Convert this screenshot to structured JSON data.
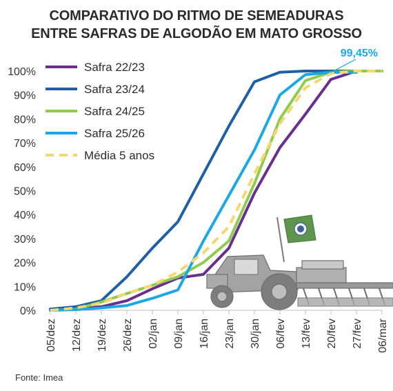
{
  "title_line1": "COMPARATIVO DO RITMO DE SEMEADURAS",
  "title_line2": "ENTRE SAFRAS DE ALGODÃO EM MATO GROSSO",
  "source": "Fonte: Imea",
  "chart_data": {
    "type": "line",
    "categories": [
      "05/dez",
      "12/dez",
      "19/dez",
      "26/dez",
      "02/jan",
      "09/jan",
      "16/jan",
      "23/jan",
      "30/jan",
      "06/fev",
      "13/fev",
      "20/fev",
      "27/fev",
      "06/mar"
    ],
    "ylim": [
      0,
      100
    ],
    "yticks": [
      "0%",
      "10%",
      "20%",
      "30%",
      "40%",
      "50%",
      "60%",
      "70%",
      "80%",
      "90%",
      "100%"
    ],
    "legend_position": "top-left",
    "annotation": {
      "label": "99,45%",
      "series": "Safra 25/26",
      "value": 99.45,
      "color": "#1aa9e6"
    },
    "series": [
      {
        "name": "Safra 22/23",
        "color": "#6a2e8f",
        "dashed": false,
        "values": [
          0.3,
          0.8,
          1.5,
          4,
          9,
          13.5,
          15,
          26,
          49,
          68,
          82,
          96.5,
          100,
          100
        ]
      },
      {
        "name": "Safra 23/24",
        "color": "#1f5fa8",
        "dashed": false,
        "values": [
          0.5,
          1.5,
          4,
          14,
          26,
          37,
          57,
          77,
          95.5,
          99.5,
          100,
          100,
          100,
          100
        ]
      },
      {
        "name": "Safra 24/25",
        "color": "#8fcc4e",
        "dashed": false,
        "values": [
          0,
          0.5,
          3.5,
          7,
          10.5,
          14,
          20,
          29,
          53,
          80,
          96,
          99.5,
          100,
          100
        ]
      },
      {
        "name": "Safra 25/26",
        "color": "#1aa9e6",
        "dashed": false,
        "values": [
          0,
          0.3,
          1,
          2,
          5,
          8.5,
          29,
          48,
          67,
          90,
          98.5,
          99.45,
          99.45,
          null
        ]
      },
      {
        "name": "Média 5 anos",
        "color": "#f5d76e",
        "dashed": true,
        "values": [
          0,
          1,
          3,
          7,
          10.5,
          16,
          24,
          35,
          57,
          78,
          93,
          99,
          100,
          100
        ]
      }
    ]
  }
}
